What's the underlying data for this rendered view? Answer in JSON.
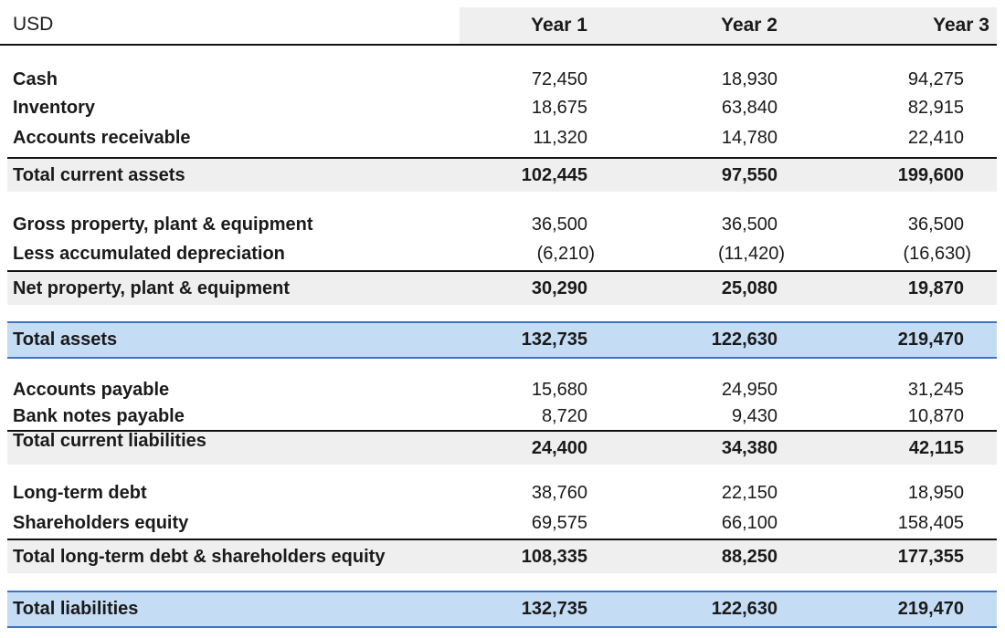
{
  "header": {
    "currency": "USD",
    "years": [
      "Year 1",
      "Year 2",
      "Year 3"
    ]
  },
  "rows": {
    "cash": {
      "label": "Cash",
      "values": [
        "72,450",
        "18,930",
        "94,275"
      ]
    },
    "inventory": {
      "label": "Inventory",
      "values": [
        "18,675",
        "63,840",
        "82,915"
      ]
    },
    "accounts_receivable": {
      "label": "Accounts receivable",
      "values": [
        "11,320",
        "14,780",
        "22,410"
      ]
    },
    "total_current_assets": {
      "label": "Total current assets",
      "values": [
        "102,445",
        "97,550",
        "199,600"
      ]
    },
    "gross_ppe": {
      "label": "Gross property, plant & equipment",
      "values": [
        "36,500",
        "36,500",
        "36,500"
      ]
    },
    "accum_depreciation": {
      "label": "Less accumulated depreciation",
      "values": [
        "(6,210)",
        "(11,420)",
        "(16,630)"
      ]
    },
    "net_ppe": {
      "label": "Net property, plant & equipment",
      "values": [
        "30,290",
        "25,080",
        "19,870"
      ]
    },
    "total_assets": {
      "label": "Total assets",
      "values": [
        "132,735",
        "122,630",
        "219,470"
      ]
    },
    "accounts_payable": {
      "label": "Accounts payable",
      "values": [
        "15,680",
        "24,950",
        "31,245"
      ]
    },
    "bank_notes_payable": {
      "label": "Bank notes payable",
      "values": [
        "8,720",
        "9,430",
        "10,870"
      ]
    },
    "total_current_liabilities": {
      "label": "Total current liabilities",
      "values": [
        "24,400",
        "34,380",
        "42,115"
      ]
    },
    "long_term_debt": {
      "label": "Long-term debt",
      "values": [
        "38,760",
        "22,150",
        "18,950"
      ]
    },
    "shareholders_equity": {
      "label": "Shareholders equity",
      "values": [
        "69,575",
        "66,100",
        "158,405"
      ]
    },
    "total_ltd_equity": {
      "label": "Total long-term debt & shareholders equity",
      "values": [
        "108,335",
        "88,250",
        "177,355"
      ]
    },
    "total_liabilities": {
      "label": "Total liabilities",
      "values": [
        "132,735",
        "122,630",
        "219,470"
      ]
    }
  },
  "colors": {
    "highlight_fill": "#c5dcf5",
    "highlight_border": "#3d74c1",
    "total_fill": "#efefef"
  }
}
